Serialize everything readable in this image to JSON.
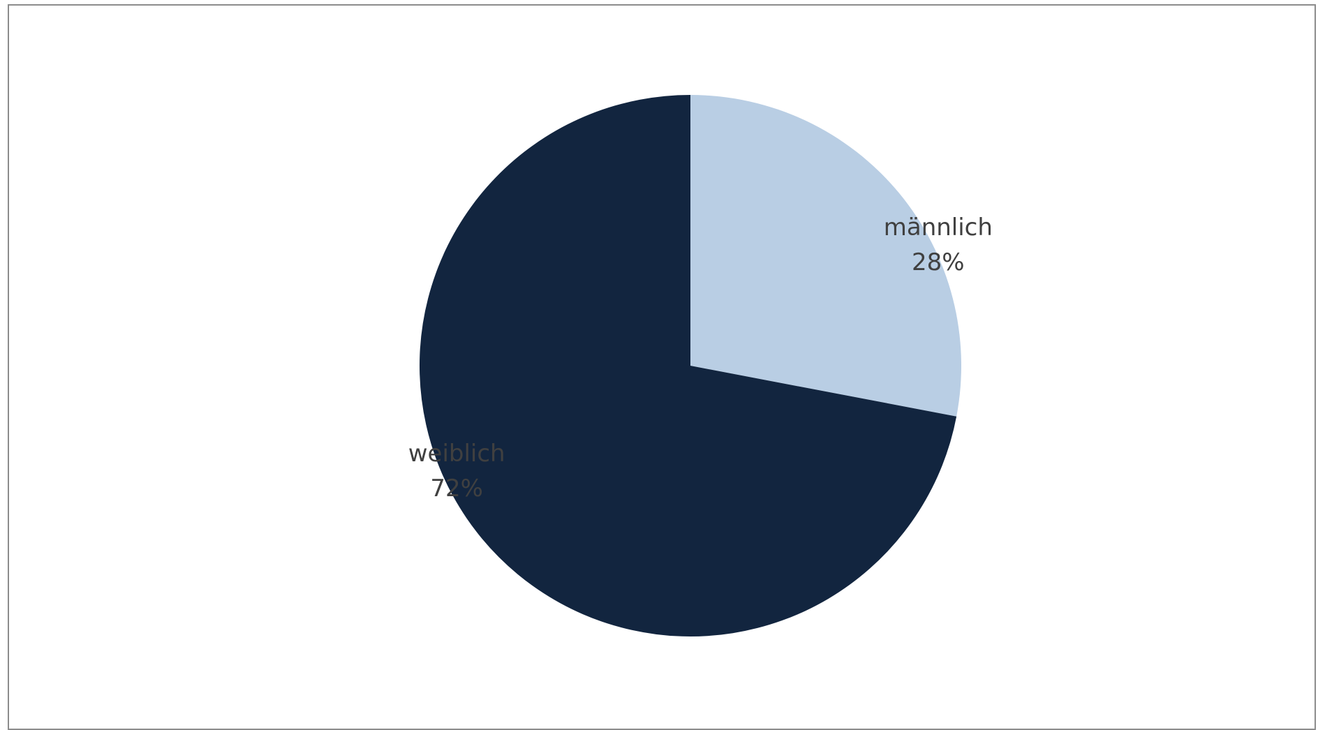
{
  "chart_data": {
    "type": "pie",
    "title": "",
    "start_angle_deg": 90,
    "direction": "clockwise",
    "slices": [
      {
        "label": "männlich",
        "value": 28,
        "value_label": "28%",
        "color": "#b9cee4"
      },
      {
        "label": "weiblich",
        "value": 72,
        "value_label": "72%",
        "color": "#12253f"
      }
    ],
    "legend": "none"
  }
}
